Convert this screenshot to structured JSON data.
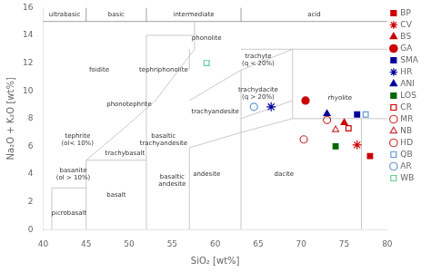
{
  "chart_data": {
    "type": "scatter",
    "xlabel": "SiO₂ [wt%]",
    "ylabel": "Na₂O + K₂O [wt%]",
    "xlim": [
      40,
      80
    ],
    "ylim": [
      0,
      16
    ],
    "xticks": [
      40,
      45,
      50,
      55,
      60,
      65,
      70,
      75,
      80
    ],
    "yticks": [
      0,
      2,
      4,
      6,
      8,
      10,
      12,
      14,
      16
    ],
    "grid": false,
    "legend": "upper right",
    "lines": [
      {
        "color": "#bbbbbb",
        "segments": [
          [
            [
              41,
              41
            ],
            [
              0,
              3
            ]
          ],
          [
            [
              41,
              45
            ],
            [
              3,
              3
            ]
          ],
          [
            [
              45,
              45
            ],
            [
              0,
              5
            ]
          ],
          [
            [
              45,
              52
            ],
            [
              5,
              5
            ]
          ],
          [
            [
              52,
              52
            ],
            [
              0,
              14
            ]
          ],
          [
            [
              45,
              49.4
            ],
            [
              5,
              7.3
            ]
          ],
          [
            [
              49.4,
              53.05
            ],
            [
              7.3,
              9.3
            ]
          ],
          [
            [
              53.05,
              57.6
            ],
            [
              9.3,
              13
            ]
          ],
          [
            [
              57.6,
              57.6
            ],
            [
              13,
              15
            ]
          ],
          [
            [
              52,
              57.6
            ],
            [
              14,
              14
            ]
          ],
          [
            [
              57,
              57
            ],
            [
              0,
              5.9
            ]
          ],
          [
            [
              57,
              63
            ],
            [
              5.9,
              7.0
            ]
          ],
          [
            [
              57,
              63
            ],
            [
              9.3,
              11.5
            ]
          ],
          [
            [
              57,
              57
            ],
            [
              11.5,
              13
            ]
          ],
          [
            [
              63,
              63
            ],
            [
              0,
              11.5
            ]
          ],
          [
            [
              63,
              69
            ],
            [
              11.5,
              13
            ]
          ],
          [
            [
              63,
              69
            ],
            [
              7.0,
              8.0
            ]
          ],
          [
            [
              63,
              69
            ],
            [
              8.0,
              9.3
            ]
          ],
          [
            [
              69,
              69
            ],
            [
              8,
              13
            ]
          ],
          [
            [
              69,
              80
            ],
            [
              8,
              8
            ]
          ],
          [
            [
              77,
              77
            ],
            [
              0,
              8
            ]
          ],
          [
            [
              63,
              80
            ],
            [
              13,
              13
            ]
          ]
        ]
      },
      {
        "color": "#888888",
        "segments": [
          [
            [
              40,
              80
            ],
            [
              15,
              15
            ]
          ],
          [
            [
              45,
              45
            ],
            [
              15,
              16
            ]
          ],
          [
            [
              52,
              52
            ],
            [
              15,
              16
            ]
          ],
          [
            [
              63,
              63
            ],
            [
              15,
              16
            ]
          ]
        ]
      }
    ],
    "annotations": [
      {
        "text": "picrobasalt",
        "x": 43,
        "y": 1.2
      },
      {
        "text": "basanite\n(ol > 10%)",
        "x": 43.5,
        "y": 4.0
      },
      {
        "text": "tephrite\n(ol< 10%)",
        "x": 44,
        "y": 6.5
      },
      {
        "text": "foidite",
        "x": 46.5,
        "y": 11.5
      },
      {
        "text": "basalt",
        "x": 48.5,
        "y": 2.5
      },
      {
        "text": "trachybasalt",
        "x": 49.5,
        "y": 5.5
      },
      {
        "text": "phonotephrite",
        "x": 50,
        "y": 9.0
      },
      {
        "text": "tephriphonolite",
        "x": 54,
        "y": 11.5
      },
      {
        "text": "phonolite",
        "x": 59,
        "y": 13.8
      },
      {
        "text": "basaltic\ntrachyandesite",
        "x": 54,
        "y": 6.5
      },
      {
        "text": "basaltic\nandesite",
        "x": 55,
        "y": 3.5
      },
      {
        "text": "trachyandesite",
        "x": 60,
        "y": 8.5
      },
      {
        "text": "andesite",
        "x": 59,
        "y": 4.0
      },
      {
        "text": "trachyte\n(q < 20%)",
        "x": 65,
        "y": 12.2
      },
      {
        "text": "trachydacite\n(q > 20%)",
        "x": 65,
        "y": 9.8
      },
      {
        "text": "dacite",
        "x": 68,
        "y": 4.0
      },
      {
        "text": "rhyolite",
        "x": 74.5,
        "y": 9.5
      },
      {
        "text": "ultrabasic",
        "x": 42.5,
        "y": 15.5
      },
      {
        "text": "basic",
        "x": 48.5,
        "y": 15.5
      },
      {
        "text": "intermediate",
        "x": 57.5,
        "y": 15.5
      },
      {
        "text": "acid",
        "x": 71.5,
        "y": 15.5
      }
    ],
    "series": [
      {
        "name": "BP",
        "color": "#cc0000",
        "marker": "square",
        "x": [
          78.0
        ],
        "values": [
          5.3
        ]
      },
      {
        "name": "CV",
        "color": "#cc0000",
        "marker": "star",
        "x": [
          76.5
        ],
        "values": [
          6.1
        ]
      },
      {
        "name": "BS",
        "color": "#cc0000",
        "marker": "triangle",
        "x": [
          75.0
        ],
        "values": [
          7.7
        ]
      },
      {
        "name": "GA",
        "color": "#cc0000",
        "marker": "circle",
        "x": [
          70.5
        ],
        "values": [
          9.3
        ]
      },
      {
        "name": "SMA",
        "color": "#000099",
        "marker": "square",
        "x": [
          76.5
        ],
        "values": [
          8.3
        ]
      },
      {
        "name": "HR",
        "color": "#000099",
        "marker": "star",
        "x": [
          66.5
        ],
        "values": [
          8.85
        ]
      },
      {
        "name": "ANI",
        "color": "#000099",
        "marker": "triangle",
        "x": [
          73.0
        ],
        "values": [
          8.35
        ]
      },
      {
        "name": "LOS",
        "color": "#006600",
        "marker": "square",
        "x": [
          74.0
        ],
        "values": [
          6.0
        ]
      },
      {
        "name": "CR",
        "color": "#cc0000",
        "marker": "open-square",
        "x": [
          75.5
        ],
        "values": [
          7.3
        ]
      },
      {
        "name": "MR",
        "color": "#cc3333",
        "marker": "open-circle",
        "x": [
          70.3
        ],
        "values": [
          6.5
        ]
      },
      {
        "name": "NB",
        "color": "#cc3333",
        "marker": "open-triangle",
        "x": [
          74.0
        ],
        "values": [
          7.2
        ]
      },
      {
        "name": "HD",
        "color": "#cc3333",
        "marker": "open-circle",
        "x": [
          73.0
        ],
        "values": [
          7.9
        ]
      },
      {
        "name": "QB",
        "color": "#6699cc",
        "marker": "open-square",
        "x": [
          77.5
        ],
        "values": [
          8.3
        ]
      },
      {
        "name": "AR",
        "color": "#6699cc",
        "marker": "open-circle",
        "x": [
          64.5
        ],
        "values": [
          8.85
        ]
      },
      {
        "name": "WB",
        "color": "#66cc99",
        "marker": "open-square",
        "x": [
          59.0
        ],
        "values": [
          12.0
        ]
      }
    ]
  }
}
